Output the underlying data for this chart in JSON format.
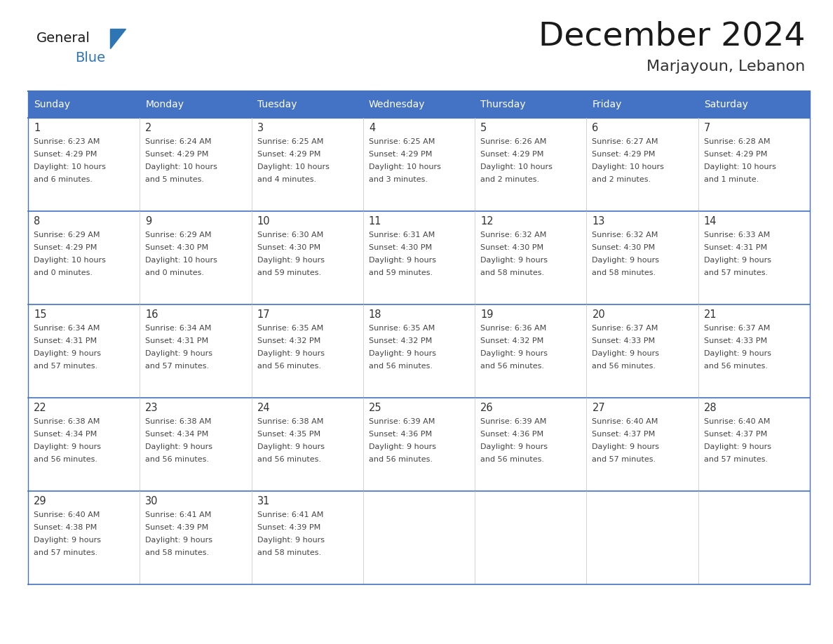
{
  "title": "December 2024",
  "subtitle": "Marjayoun, Lebanon",
  "days_of_week": [
    "Sunday",
    "Monday",
    "Tuesday",
    "Wednesday",
    "Thursday",
    "Friday",
    "Saturday"
  ],
  "header_bg_color": "#4472C4",
  "header_text_color": "#FFFFFF",
  "grid_color": "#4472C4",
  "row_line_color": "#4472C4",
  "day_num_color": "#333333",
  "text_color": "#444444",
  "title_color": "#1a1a1a",
  "subtitle_color": "#333333",
  "logo_general_color": "#1a1a1a",
  "logo_blue_color": "#2E75B6",
  "bg_color": "#FFFFFF",
  "weeks": [
    [
      {
        "day": 1,
        "sunrise": "6:23 AM",
        "sunset": "4:29 PM",
        "daylight": "10 hours and 6 minutes."
      },
      {
        "day": 2,
        "sunrise": "6:24 AM",
        "sunset": "4:29 PM",
        "daylight": "10 hours and 5 minutes."
      },
      {
        "day": 3,
        "sunrise": "6:25 AM",
        "sunset": "4:29 PM",
        "daylight": "10 hours and 4 minutes."
      },
      {
        "day": 4,
        "sunrise": "6:25 AM",
        "sunset": "4:29 PM",
        "daylight": "10 hours and 3 minutes."
      },
      {
        "day": 5,
        "sunrise": "6:26 AM",
        "sunset": "4:29 PM",
        "daylight": "10 hours and 2 minutes."
      },
      {
        "day": 6,
        "sunrise": "6:27 AM",
        "sunset": "4:29 PM",
        "daylight": "10 hours and 2 minutes."
      },
      {
        "day": 7,
        "sunrise": "6:28 AM",
        "sunset": "4:29 PM",
        "daylight": "10 hours and 1 minute."
      }
    ],
    [
      {
        "day": 8,
        "sunrise": "6:29 AM",
        "sunset": "4:29 PM",
        "daylight": "10 hours and 0 minutes."
      },
      {
        "day": 9,
        "sunrise": "6:29 AM",
        "sunset": "4:30 PM",
        "daylight": "10 hours and 0 minutes."
      },
      {
        "day": 10,
        "sunrise": "6:30 AM",
        "sunset": "4:30 PM",
        "daylight": "9 hours and 59 minutes."
      },
      {
        "day": 11,
        "sunrise": "6:31 AM",
        "sunset": "4:30 PM",
        "daylight": "9 hours and 59 minutes."
      },
      {
        "day": 12,
        "sunrise": "6:32 AM",
        "sunset": "4:30 PM",
        "daylight": "9 hours and 58 minutes."
      },
      {
        "day": 13,
        "sunrise": "6:32 AM",
        "sunset": "4:30 PM",
        "daylight": "9 hours and 58 minutes."
      },
      {
        "day": 14,
        "sunrise": "6:33 AM",
        "sunset": "4:31 PM",
        "daylight": "9 hours and 57 minutes."
      }
    ],
    [
      {
        "day": 15,
        "sunrise": "6:34 AM",
        "sunset": "4:31 PM",
        "daylight": "9 hours and 57 minutes."
      },
      {
        "day": 16,
        "sunrise": "6:34 AM",
        "sunset": "4:31 PM",
        "daylight": "9 hours and 57 minutes."
      },
      {
        "day": 17,
        "sunrise": "6:35 AM",
        "sunset": "4:32 PM",
        "daylight": "9 hours and 56 minutes."
      },
      {
        "day": 18,
        "sunrise": "6:35 AM",
        "sunset": "4:32 PM",
        "daylight": "9 hours and 56 minutes."
      },
      {
        "day": 19,
        "sunrise": "6:36 AM",
        "sunset": "4:32 PM",
        "daylight": "9 hours and 56 minutes."
      },
      {
        "day": 20,
        "sunrise": "6:37 AM",
        "sunset": "4:33 PM",
        "daylight": "9 hours and 56 minutes."
      },
      {
        "day": 21,
        "sunrise": "6:37 AM",
        "sunset": "4:33 PM",
        "daylight": "9 hours and 56 minutes."
      }
    ],
    [
      {
        "day": 22,
        "sunrise": "6:38 AM",
        "sunset": "4:34 PM",
        "daylight": "9 hours and 56 minutes."
      },
      {
        "day": 23,
        "sunrise": "6:38 AM",
        "sunset": "4:34 PM",
        "daylight": "9 hours and 56 minutes."
      },
      {
        "day": 24,
        "sunrise": "6:38 AM",
        "sunset": "4:35 PM",
        "daylight": "9 hours and 56 minutes."
      },
      {
        "day": 25,
        "sunrise": "6:39 AM",
        "sunset": "4:36 PM",
        "daylight": "9 hours and 56 minutes."
      },
      {
        "day": 26,
        "sunrise": "6:39 AM",
        "sunset": "4:36 PM",
        "daylight": "9 hours and 56 minutes."
      },
      {
        "day": 27,
        "sunrise": "6:40 AM",
        "sunset": "4:37 PM",
        "daylight": "9 hours and 57 minutes."
      },
      {
        "day": 28,
        "sunrise": "6:40 AM",
        "sunset": "4:37 PM",
        "daylight": "9 hours and 57 minutes."
      }
    ],
    [
      {
        "day": 29,
        "sunrise": "6:40 AM",
        "sunset": "4:38 PM",
        "daylight": "9 hours and 57 minutes."
      },
      {
        "day": 30,
        "sunrise": "6:41 AM",
        "sunset": "4:39 PM",
        "daylight": "9 hours and 58 minutes."
      },
      {
        "day": 31,
        "sunrise": "6:41 AM",
        "sunset": "4:39 PM",
        "daylight": "9 hours and 58 minutes."
      },
      null,
      null,
      null,
      null
    ]
  ]
}
